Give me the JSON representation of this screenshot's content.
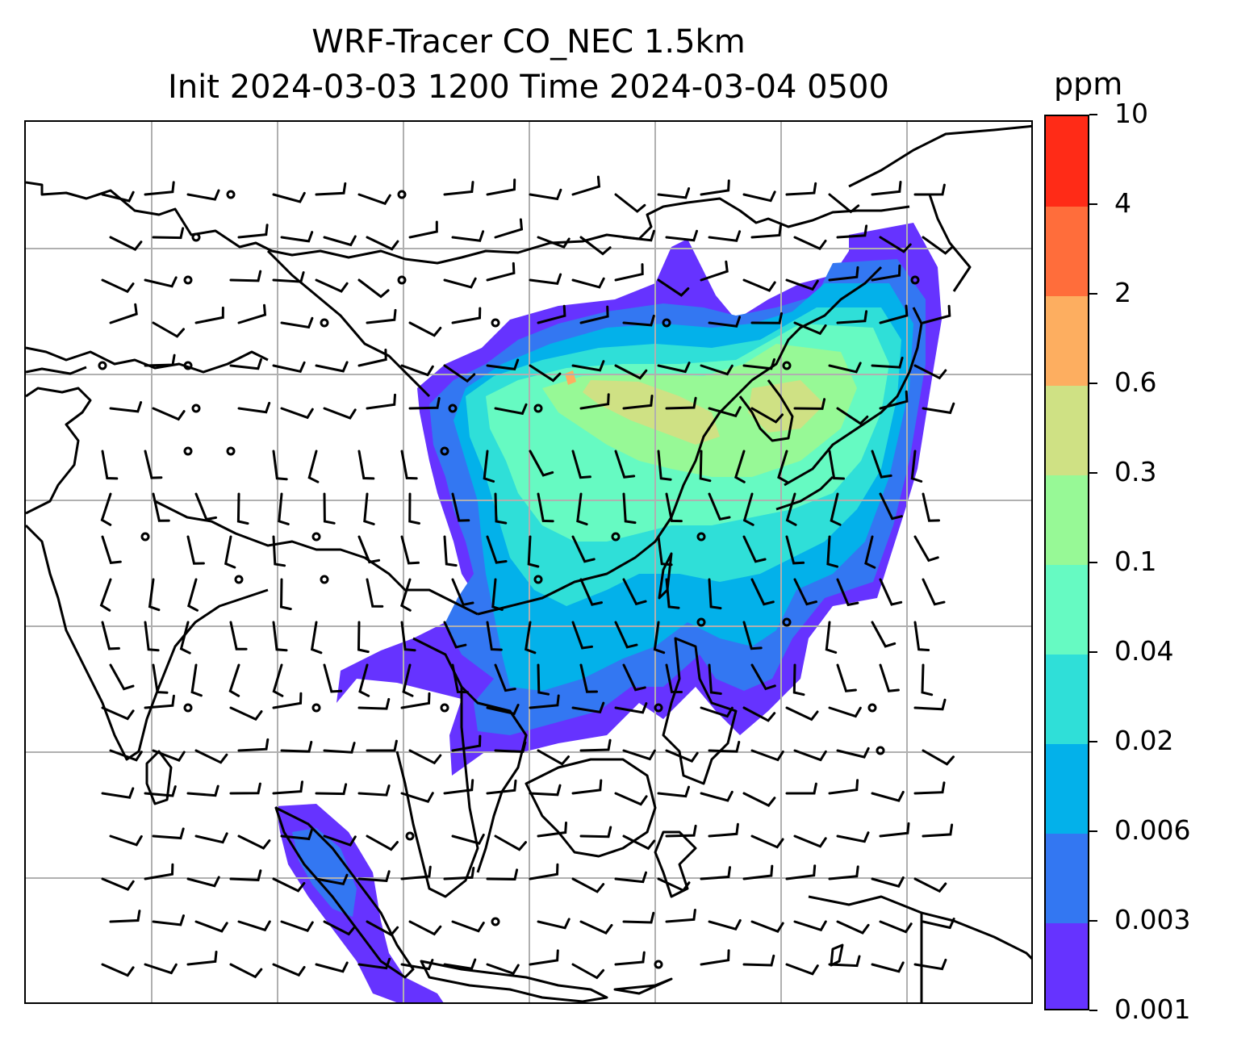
{
  "title_line1": "WRF-Tracer CO_NEC 1.5km",
  "title_line2": "Init 2024-03-03 1200 Time 2024-03-04 0500",
  "colorbar": {
    "unit": "ppm",
    "levels": [
      "0.001",
      "0.003",
      "0.006",
      "0.02",
      "0.04",
      "0.1",
      "0.3",
      "0.6",
      "2",
      "4",
      "10"
    ],
    "colors": [
      "#6633ff",
      "#3377f2",
      "#03b1ea",
      "#2fdfd8",
      "#66fac2",
      "#97f996",
      "#cfe184",
      "#fdae60",
      "#ff6d3b",
      "#ff2b17"
    ]
  },
  "map": {
    "gridlines": true,
    "features": [
      "coastlines",
      "country-borders",
      "wind-barbs",
      "tracer-concentration-fill"
    ]
  }
}
